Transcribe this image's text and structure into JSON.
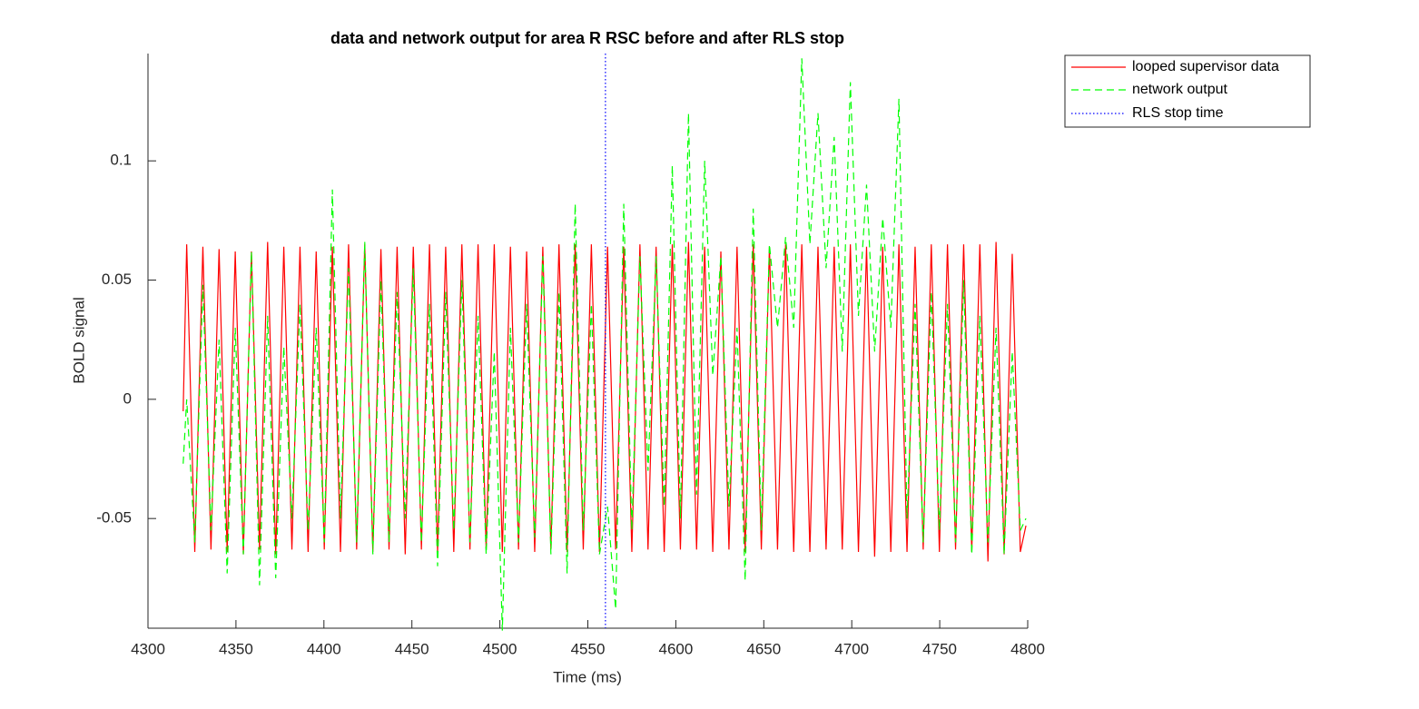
{
  "chart_data": {
    "type": "line",
    "title": "data and network output for area R RSC before and after RLS stop",
    "xlabel": "Time (ms)",
    "ylabel": "BOLD signal",
    "x": [
      4320,
      4322,
      4326.6,
      4331.2,
      4335.8,
      4340.4,
      4345,
      4349.6,
      4354.2,
      4358.8,
      4363.4,
      4368,
      4372.6,
      4377.2,
      4381.8,
      4386.4,
      4391,
      4395.6,
      4400.2,
      4404.8,
      4409.4,
      4414,
      4418.6,
      4423.2,
      4427.8,
      4432.4,
      4437,
      4441.6,
      4446.2,
      4450.8,
      4455.4,
      4460,
      4464.6,
      4469.2,
      4473.8,
      4478.4,
      4483,
      4487.6,
      4492.2,
      4496.8,
      4501.4,
      4506,
      4510.6,
      4515.2,
      4519.8,
      4524.4,
      4529,
      4533.6,
      4538.2,
      4542.8,
      4547.4,
      4552,
      4556.6,
      4561.2,
      4565.8,
      4570.4,
      4575,
      4579.6,
      4584.2,
      4588.8,
      4593.4,
      4598,
      4602.6,
      4607.2,
      4611.8,
      4616.4,
      4621,
      4625.6,
      4630.2,
      4634.8,
      4639.4,
      4644,
      4648.6,
      4653.2,
      4657.8,
      4662.4,
      4667,
      4671.6,
      4676.2,
      4680.8,
      4685.4,
      4690,
      4694.6,
      4699.2,
      4703.8,
      4708.4,
      4713,
      4717.6,
      4722.2,
      4726.8,
      4731.4,
      4736,
      4740.6,
      4745.2,
      4749.8,
      4754.4,
      4759,
      4763.6,
      4768.2,
      4772.8,
      4777.4,
      4782,
      4786.6,
      4791.2,
      4795.8,
      4799
    ],
    "series": [
      {
        "name": "looped supervisor data",
        "color": "#ff0000",
        "dash": "none",
        "values": [
          -0.005,
          0.065,
          -0.064,
          0.064,
          -0.063,
          0.063,
          -0.064,
          0.062,
          -0.065,
          0.062,
          -0.063,
          0.066,
          -0.065,
          0.064,
          -0.063,
          0.064,
          -0.064,
          0.062,
          -0.063,
          0.064,
          -0.064,
          0.065,
          -0.063,
          0.065,
          -0.064,
          0.063,
          -0.063,
          0.064,
          -0.065,
          0.064,
          -0.063,
          0.065,
          -0.064,
          0.064,
          -0.064,
          0.065,
          -0.063,
          0.065,
          -0.063,
          0.065,
          -0.064,
          0.064,
          -0.063,
          0.062,
          -0.064,
          0.064,
          -0.063,
          0.065,
          -0.064,
          0.065,
          -0.063,
          0.065,
          -0.064,
          0.064,
          -0.063,
          0.064,
          -0.064,
          0.065,
          -0.063,
          0.064,
          -0.064,
          0.065,
          -0.063,
          0.066,
          -0.063,
          0.064,
          -0.064,
          0.062,
          -0.063,
          0.064,
          -0.064,
          0.065,
          -0.063,
          0.064,
          -0.063,
          0.065,
          -0.064,
          0.065,
          -0.064,
          0.064,
          -0.063,
          0.064,
          -0.063,
          0.065,
          -0.064,
          0.064,
          -0.066,
          0.064,
          -0.064,
          0.065,
          -0.064,
          0.064,
          -0.063,
          0.065,
          -0.064,
          0.065,
          -0.063,
          0.065,
          -0.064,
          0.065,
          -0.068,
          0.066,
          -0.065,
          0.061,
          -0.064,
          -0.053
        ]
      },
      {
        "name": "network output",
        "color": "#00ff00",
        "dash": "dashed",
        "values": [
          -0.027,
          0.0,
          -0.06,
          0.048,
          -0.055,
          0.025,
          -0.073,
          0.03,
          -0.065,
          0.062,
          -0.078,
          0.035,
          -0.075,
          0.022,
          -0.05,
          0.04,
          -0.055,
          0.03,
          -0.06,
          0.088,
          -0.05,
          0.055,
          -0.06,
          0.066,
          -0.065,
          0.05,
          -0.06,
          0.045,
          -0.05,
          0.055,
          -0.06,
          0.04,
          -0.07,
          0.045,
          -0.055,
          0.05,
          -0.06,
          0.035,
          -0.065,
          0.02,
          -0.097,
          0.03,
          -0.06,
          0.04,
          -0.058,
          0.06,
          -0.065,
          0.045,
          -0.073,
          0.082,
          -0.055,
          0.04,
          -0.065,
          -0.045,
          -0.088,
          0.082,
          -0.055,
          0.06,
          -0.03,
          0.06,
          -0.045,
          0.098,
          -0.05,
          0.12,
          -0.04,
          0.1,
          0.01,
          0.06,
          -0.045,
          0.03,
          -0.076,
          0.08,
          -0.055,
          0.065,
          0.03,
          0.068,
          0.03,
          0.143,
          0.065,
          0.12,
          0.055,
          0.11,
          0.02,
          0.133,
          0.035,
          0.09,
          0.02,
          0.076,
          0.03,
          0.126,
          -0.05,
          0.04,
          -0.06,
          0.045,
          -0.055,
          0.04,
          -0.06,
          0.05,
          -0.065,
          0.035,
          -0.06,
          0.03,
          -0.065,
          0.02,
          -0.055,
          -0.05
        ]
      }
    ],
    "stop_line": {
      "name": "RLS stop time",
      "x": 4560,
      "color": "#0000ff"
    },
    "xlim": [
      4300,
      4800
    ],
    "xticks": [
      4300,
      4350,
      4400,
      4450,
      4500,
      4550,
      4600,
      4650,
      4700,
      4750,
      4800
    ],
    "ylim": [
      -0.096,
      0.145
    ],
    "yticks": [
      -0.05,
      0,
      0.05,
      0.1
    ],
    "legend": "outside-top-right"
  }
}
